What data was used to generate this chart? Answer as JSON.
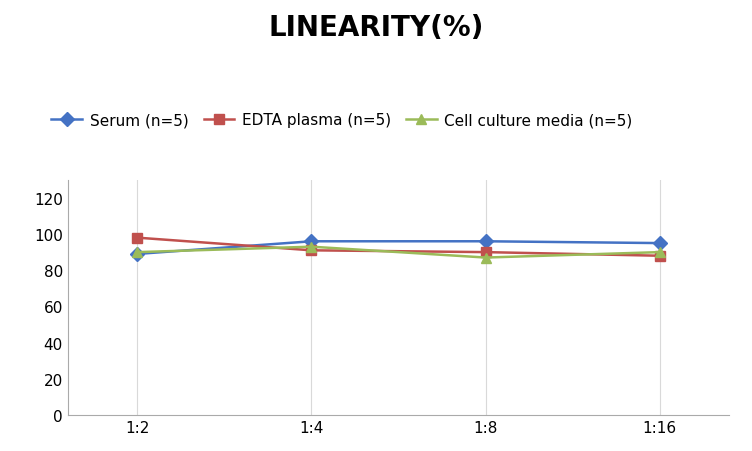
{
  "title": "LINEARITY(%)",
  "x_labels": [
    "1:2",
    "1:4",
    "1:8",
    "1:16"
  ],
  "x_values": [
    0,
    1,
    2,
    3
  ],
  "series": [
    {
      "name": "Serum (n=5)",
      "values": [
        89,
        96,
        96,
        95
      ],
      "color": "#4472C4",
      "marker": "D",
      "marker_facecolor": "#4472C4"
    },
    {
      "name": "EDTA plasma (n=5)",
      "values": [
        98,
        91,
        90,
        88
      ],
      "color": "#C0504D",
      "marker": "s",
      "marker_facecolor": "#C0504D"
    },
    {
      "name": "Cell culture media (n=5)",
      "values": [
        90,
        93,
        87,
        90
      ],
      "color": "#9BBB59",
      "marker": "^",
      "marker_facecolor": "#9BBB59"
    }
  ],
  "ylim": [
    0,
    130
  ],
  "yticks": [
    0,
    20,
    40,
    60,
    80,
    100,
    120
  ],
  "grid_color": "#D9D9D9",
  "background_color": "#FFFFFF",
  "title_fontsize": 20,
  "legend_fontsize": 11,
  "tick_fontsize": 11
}
